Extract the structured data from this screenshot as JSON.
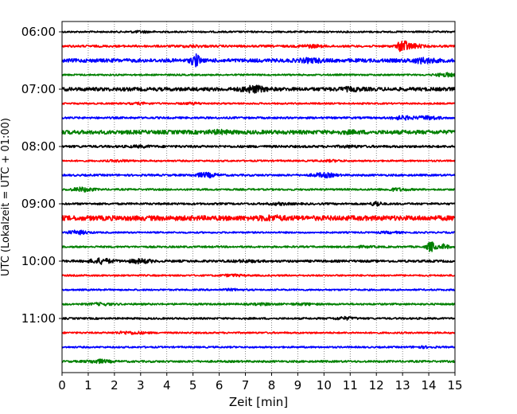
{
  "chart_data": {
    "type": "line",
    "xlabel": "Zeit  [min]",
    "ylabel": "UTC (Lokalzeit = UTC + 01:00)",
    "xlim": [
      0,
      15
    ],
    "x_ticks": [
      "0",
      "1",
      "2",
      "3",
      "4",
      "5",
      "6",
      "7",
      "8",
      "9",
      "10",
      "11",
      "12",
      "13",
      "14",
      "15"
    ],
    "hour_labels": [
      "06:00",
      "07:00",
      "08:00",
      "09:00",
      "10:00",
      "11:00"
    ],
    "grid": "vertical dotted at each minute",
    "trace_interval_minutes": 15,
    "colors": [
      "#000000",
      "#ff0000",
      "#0000ff",
      "#008000"
    ],
    "traces": [
      {
        "time": "06:00",
        "color": "#000000",
        "amp": 1.0,
        "events": [
          [
            3.0,
            1.8
          ]
        ]
      },
      {
        "time": "06:15",
        "color": "#ff0000",
        "amp": 1.3,
        "events": [
          [
            5.0,
            1.6
          ],
          [
            9.5,
            2.0
          ],
          [
            13.0,
            6.0
          ],
          [
            13.3,
            3.0
          ]
        ]
      },
      {
        "time": "06:30",
        "color": "#0000ff",
        "amp": 2.2,
        "events": [
          [
            5.1,
            4.0
          ],
          [
            9.5,
            1.8
          ],
          [
            13.8,
            2.0
          ]
        ]
      },
      {
        "time": "06:45",
        "color": "#008000",
        "amp": 1.0,
        "events": [
          [
            14.7,
            3.0
          ]
        ]
      },
      {
        "time": "07:00",
        "color": "#000000",
        "amp": 2.2,
        "events": [
          [
            7.3,
            2.5
          ],
          [
            11.0,
            1.6
          ]
        ]
      },
      {
        "time": "07:15",
        "color": "#ff0000",
        "amp": 1.0,
        "events": [
          [
            3.0,
            1.8
          ],
          [
            5.0,
            1.8
          ]
        ]
      },
      {
        "time": "07:30",
        "color": "#0000ff",
        "amp": 1.2,
        "events": [
          [
            13.0,
            2.5
          ],
          [
            14.0,
            2.5
          ]
        ]
      },
      {
        "time": "07:45",
        "color": "#008000",
        "amp": 2.4,
        "events": [
          [
            6.0,
            1.5
          ],
          [
            11.0,
            1.3
          ]
        ]
      },
      {
        "time": "08:00",
        "color": "#000000",
        "amp": 1.4,
        "events": [
          [
            3.0,
            1.5
          ],
          [
            11.0,
            1.5
          ]
        ]
      },
      {
        "time": "08:15",
        "color": "#ff0000",
        "amp": 1.0,
        "events": [
          [
            2.2,
            1.8
          ],
          [
            10.3,
            1.8
          ]
        ]
      },
      {
        "time": "08:30",
        "color": "#0000ff",
        "amp": 1.2,
        "events": [
          [
            5.5,
            3.0
          ],
          [
            10.0,
            3.0
          ]
        ]
      },
      {
        "time": "08:45",
        "color": "#008000",
        "amp": 1.1,
        "events": [
          [
            0.8,
            3.0
          ],
          [
            12.8,
            2.2
          ]
        ]
      },
      {
        "time": "09:00",
        "color": "#000000",
        "amp": 1.2,
        "events": [
          [
            8.3,
            1.8
          ],
          [
            12.0,
            3.5
          ]
        ]
      },
      {
        "time": "09:15",
        "color": "#ff0000",
        "amp": 3.0,
        "events": [
          [
            8.0,
            1.5
          ]
        ]
      },
      {
        "time": "09:30",
        "color": "#0000ff",
        "amp": 1.0,
        "events": [
          [
            0.6,
            3.0
          ],
          [
            12.5,
            1.8
          ]
        ]
      },
      {
        "time": "09:45",
        "color": "#008000",
        "amp": 1.1,
        "events": [
          [
            11.5,
            1.6
          ],
          [
            14.1,
            6.5
          ],
          [
            14.6,
            3.5
          ]
        ]
      },
      {
        "time": "10:00",
        "color": "#000000",
        "amp": 1.4,
        "events": [
          [
            1.5,
            3.0
          ],
          [
            3.0,
            2.5
          ],
          [
            7.0,
            1.6
          ]
        ]
      },
      {
        "time": "10:15",
        "color": "#ff0000",
        "amp": 1.0,
        "events": [
          [
            6.5,
            2.0
          ]
        ]
      },
      {
        "time": "10:30",
        "color": "#0000ff",
        "amp": 1.0,
        "events": [
          [
            6.5,
            1.8
          ]
        ]
      },
      {
        "time": "10:45",
        "color": "#008000",
        "amp": 1.1,
        "events": [
          [
            1.5,
            2.0
          ],
          [
            7.7,
            1.8
          ],
          [
            9.2,
            1.8
          ]
        ]
      },
      {
        "time": "11:00",
        "color": "#000000",
        "amp": 1.1,
        "events": [
          [
            10.8,
            2.2
          ]
        ]
      },
      {
        "time": "11:15",
        "color": "#ff0000",
        "amp": 1.0,
        "events": [
          [
            2.4,
            2.0
          ],
          [
            2.9,
            1.8
          ]
        ]
      },
      {
        "time": "11:30",
        "color": "#0000ff",
        "amp": 1.0,
        "events": [
          [
            13.8,
            1.8
          ]
        ]
      },
      {
        "time": "11:45",
        "color": "#008000",
        "amp": 1.2,
        "events": [
          [
            1.4,
            2.5
          ]
        ]
      }
    ]
  }
}
